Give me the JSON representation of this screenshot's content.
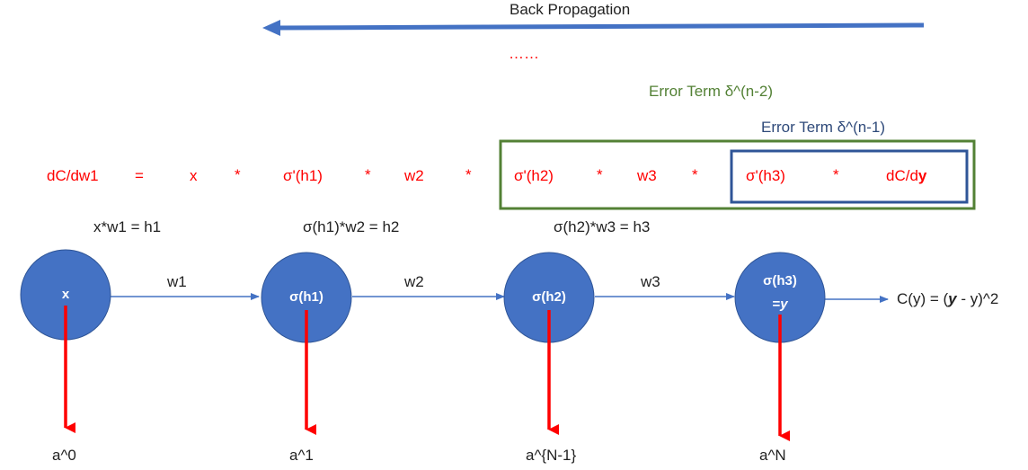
{
  "title": "Back Propagation",
  "ellipsis": "……",
  "error_terms": {
    "outer": "Error Term δ^(n-2)",
    "inner": "Error Term δ^(n-1)"
  },
  "equation": {
    "lhs": "dC/dw1",
    "equals": "=",
    "terms": [
      "x",
      "*",
      "σ'(h1)",
      "*",
      "w2",
      "*",
      "σ'(h2)",
      "*",
      "w3",
      "*",
      "σ'(h3)",
      "*"
    ],
    "last_prefix": "dC/d",
    "last_bold": "y"
  },
  "relations": [
    "x*w1 = h1",
    "σ(h1)*w2 = h2",
    "σ(h2)*w3 = h3"
  ],
  "nodes": [
    {
      "label": "x",
      "label2": ""
    },
    {
      "label": "σ(h1)",
      "label2": ""
    },
    {
      "label": "σ(h2)",
      "label2": ""
    },
    {
      "label": "σ(h3)",
      "label2_prefix": "=",
      "label2_bold": "y"
    }
  ],
  "weights": [
    "w1",
    "w2",
    "w3"
  ],
  "cost": {
    "prefix": "C(y) = (",
    "bold": "y",
    "suffix": " - y)^2"
  },
  "activations": [
    "a^0",
    "a^1",
    "a^{N-1}",
    "a^N"
  ],
  "colors": {
    "node_fill": "#4472c4",
    "arrow_blue": "#4472c4",
    "red": "#ff0000",
    "green": "#538135",
    "navy": "#2f5597"
  }
}
